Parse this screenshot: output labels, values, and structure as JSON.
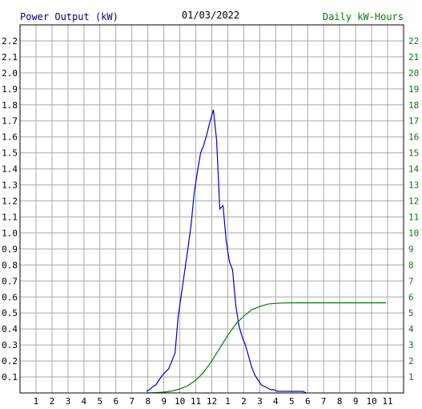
{
  "chart_data": {
    "type": "line",
    "title": "01/03/2022",
    "ylabel": "Power Output (kW)",
    "y2label": "Daily kW-Hours",
    "ylim": [
      0,
      2.3
    ],
    "y2lim": [
      0,
      23
    ],
    "grid": true,
    "x_tick_labels": [
      "1",
      "2",
      "3",
      "4",
      "5",
      "6",
      "7",
      "8",
      "9",
      "10",
      "11",
      "12",
      "1",
      "2",
      "3",
      "4",
      "5",
      "6",
      "7",
      "8",
      "9",
      "10",
      "11"
    ],
    "y_tick_labels": [
      "0.1",
      "0.2",
      "0.3",
      "0.4",
      "0.5",
      "0.6",
      "0.7",
      "0.8",
      "0.9",
      "1.0",
      "1.1",
      "1.2",
      "1.3",
      "1.4",
      "1.5",
      "1.6",
      "1.7",
      "1.8",
      "1.9",
      "2.0",
      "2.1",
      "2.2"
    ],
    "y2_tick_labels": [
      "1",
      "2",
      "3",
      "4",
      "5",
      "6",
      "7",
      "8",
      "9",
      "10",
      "11",
      "12",
      "13",
      "14",
      "15",
      "16",
      "17",
      "18",
      "19",
      "20",
      "21",
      "22"
    ],
    "colors": {
      "power": "#0000cc",
      "energy": "#008000",
      "ylabel": "#000080",
      "y2label": "#008000",
      "ytick": "#000000",
      "y2tick": "#008000",
      "grid": "#aaaaaa",
      "axis": "#000000"
    },
    "series": [
      {
        "key": "power",
        "x": [
          7.9,
          8.1,
          8.3,
          8.5,
          8.7,
          8.9,
          9.1,
          9.3,
          9.5,
          9.7,
          9.9,
          10.1,
          10.3,
          10.5,
          10.7,
          10.9,
          11.1,
          11.3,
          11.5,
          11.7,
          11.9,
          12.1,
          12.3,
          12.5,
          12.7,
          12.9,
          13.1,
          13.3,
          13.5,
          13.7,
          13.9,
          14.1,
          14.3,
          14.5,
          14.7,
          14.9,
          15.1,
          15.3,
          15.5,
          15.7,
          15.9,
          16.1,
          16.3,
          16.5,
          16.7,
          16.9,
          17.1,
          17.3,
          17.5,
          17.7,
          17.9
        ],
        "values": [
          0.01,
          0.02,
          0.04,
          0.05,
          0.08,
          0.11,
          0.13,
          0.15,
          0.2,
          0.25,
          0.48,
          0.62,
          0.76,
          0.9,
          1.05,
          1.25,
          1.38,
          1.5,
          1.55,
          1.62,
          1.7,
          1.77,
          1.58,
          1.15,
          1.17,
          0.95,
          0.82,
          0.77,
          0.55,
          0.42,
          0.35,
          0.3,
          0.23,
          0.16,
          0.11,
          0.08,
          0.05,
          0.04,
          0.03,
          0.02,
          0.02,
          0.01,
          0.01,
          0.01,
          0.01,
          0.01,
          0.01,
          0.01,
          0.01,
          0.01,
          0.0
        ]
      },
      {
        "key": "energy",
        "x": [
          7.9,
          8.5,
          9.0,
          9.5,
          10.0,
          10.5,
          11.0,
          11.5,
          12.0,
          12.5,
          13.0,
          13.5,
          14.0,
          14.5,
          15.0,
          15.5,
          16.0,
          16.5,
          17.0,
          17.5,
          18.0,
          19.0,
          20.0,
          21.0,
          22.0,
          22.9
        ],
        "values": [
          0.0,
          0.02,
          0.05,
          0.12,
          0.25,
          0.45,
          0.8,
          1.3,
          2.0,
          2.8,
          3.6,
          4.3,
          4.8,
          5.2,
          5.4,
          5.55,
          5.6,
          5.62,
          5.63,
          5.63,
          5.63,
          5.63,
          5.63,
          5.63,
          5.63,
          5.63
        ]
      }
    ]
  }
}
